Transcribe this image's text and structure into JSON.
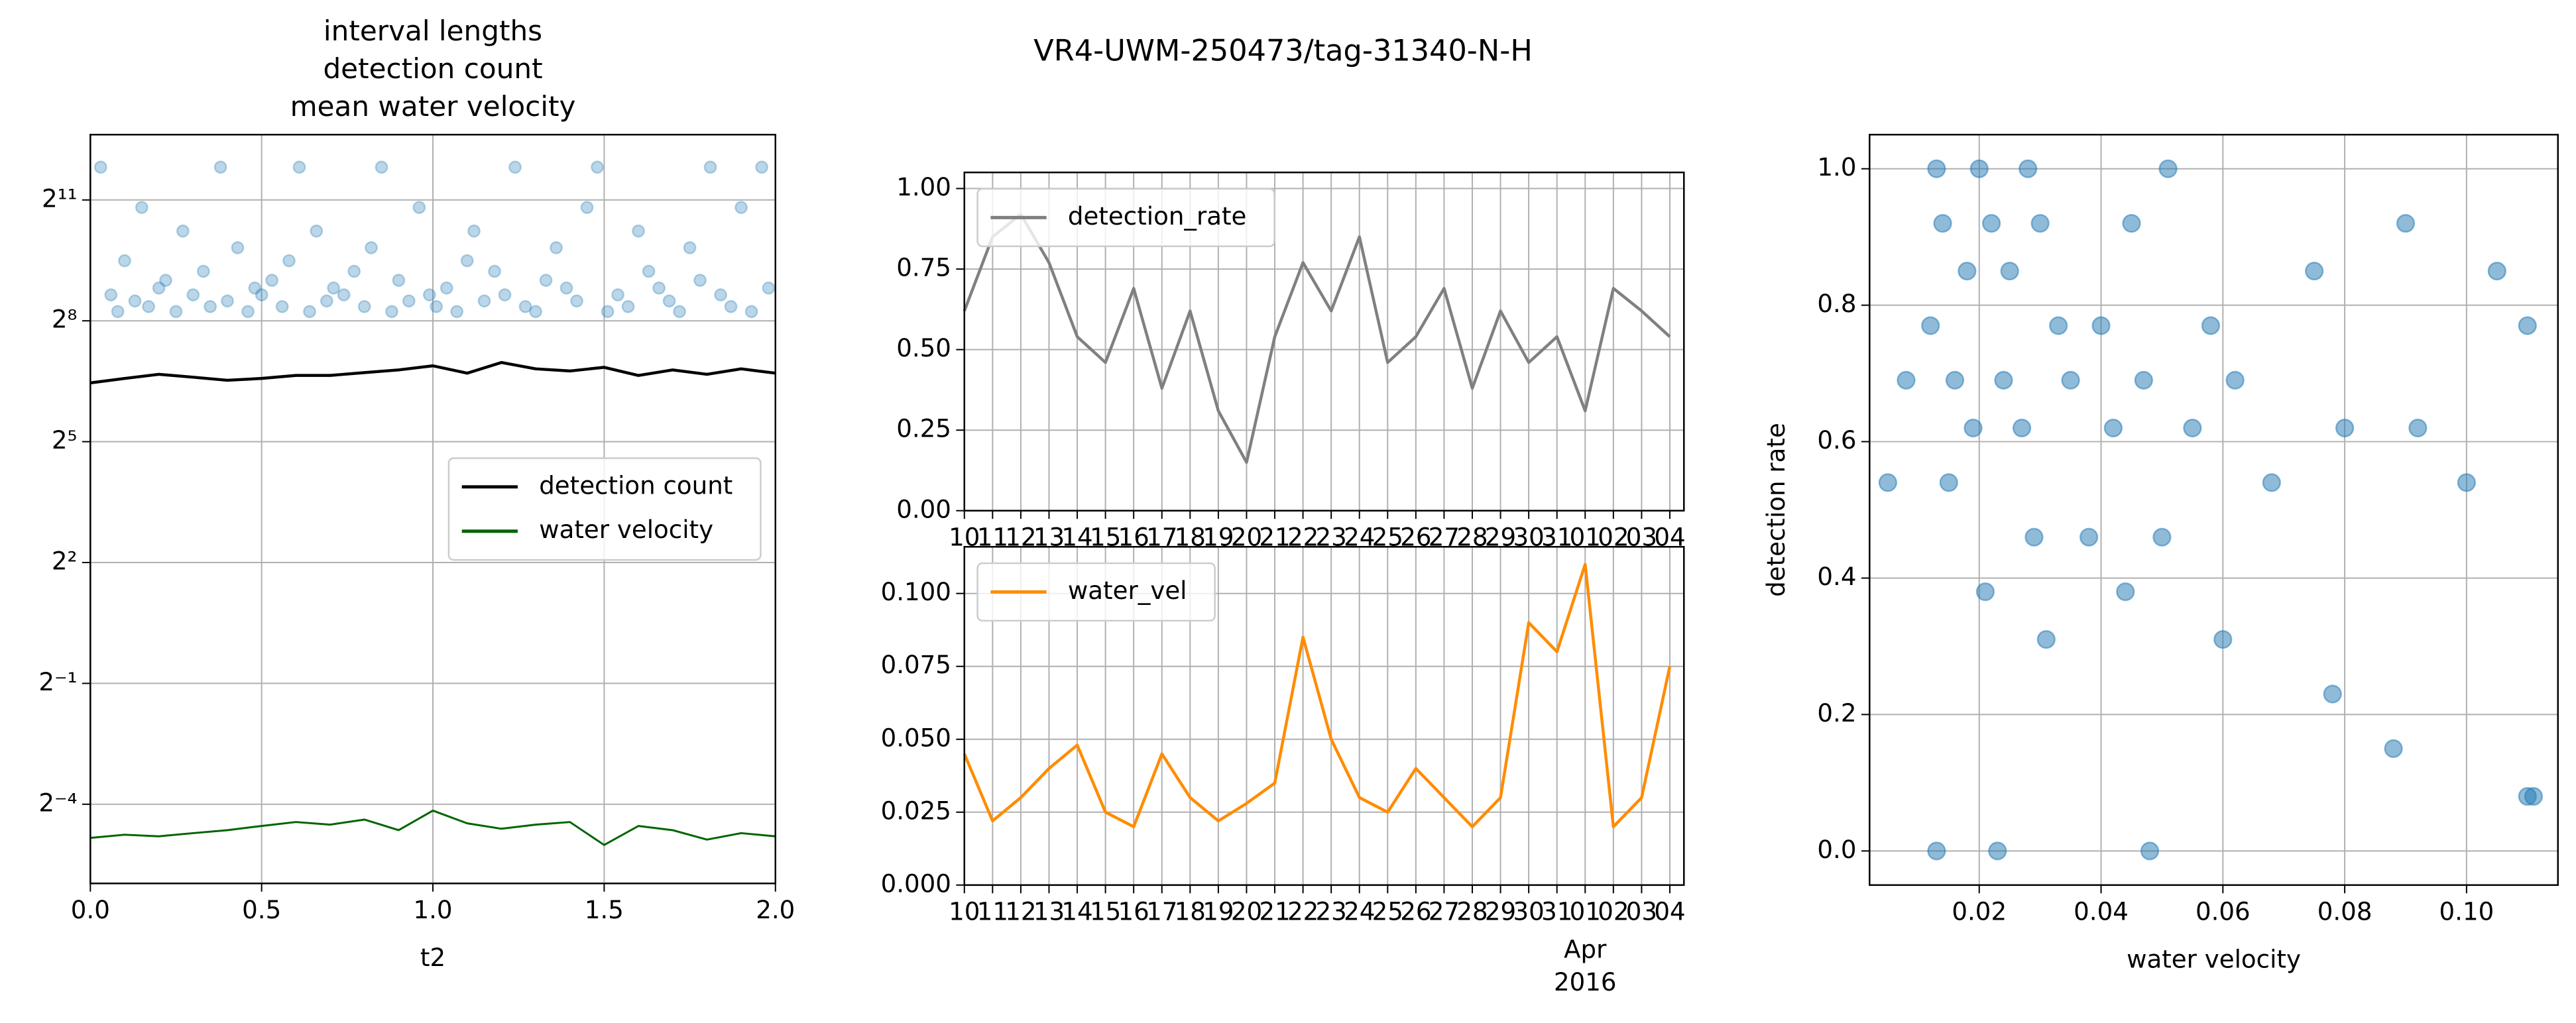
{
  "figure_title": "VR4-UWM-250473/tag-31340-N-H",
  "chart_data": [
    {
      "type": "combo",
      "title": [
        "interval lengths",
        "detection count",
        "mean water velocity"
      ],
      "xlabel": "t2",
      "xlim": [
        0,
        2
      ],
      "xticks": [
        {
          "value": 0,
          "label": "0.0"
        },
        0.5,
        {
          "value": 1,
          "label": "1.0"
        },
        1.5,
        {
          "value": 2,
          "label": "2.0"
        }
      ],
      "yscale": "log",
      "ybase": 2,
      "ylim": [
        0.016,
        6300
      ],
      "yticks": [
        {
          "value": 0.0625,
          "label": "2⁻⁴"
        },
        {
          "value": 0.5,
          "label": "2⁻¹"
        },
        {
          "value": 4,
          "label": "2²"
        },
        {
          "value": 32,
          "label": "2⁵"
        },
        {
          "value": 256,
          "label": "2⁸"
        },
        {
          "value": 2048,
          "label": "2¹¹"
        }
      ],
      "grid": true,
      "legend": "center right",
      "x": [
        0,
        0.1,
        0.2,
        0.3,
        0.4,
        0.5,
        0.6,
        0.7,
        0.8,
        0.9,
        1.0,
        1.1,
        1.2,
        1.3,
        1.4,
        1.5,
        1.6,
        1.7,
        1.8,
        1.9,
        2.0
      ],
      "series": [
        {
          "type": "scatter",
          "color": "#1f77b4",
          "x": [
            0.03,
            0.06,
            0.08,
            0.1,
            0.13,
            0.15,
            0.17,
            0.2,
            0.22,
            0.25,
            0.27,
            0.3,
            0.33,
            0.35,
            0.38,
            0.4,
            0.43,
            0.46,
            0.48,
            0.5,
            0.53,
            0.56,
            0.58,
            0.61,
            0.64,
            0.66,
            0.69,
            0.71,
            0.74,
            0.77,
            0.8,
            0.82,
            0.85,
            0.88,
            0.9,
            0.93,
            0.96,
            0.99,
            1.01,
            1.04,
            1.07,
            1.1,
            1.12,
            1.15,
            1.18,
            1.21,
            1.24,
            1.27,
            1.3,
            1.33,
            1.36,
            1.39,
            1.42,
            1.45,
            1.48,
            1.51,
            1.54,
            1.57,
            1.6,
            1.63,
            1.66,
            1.69,
            1.72,
            1.75,
            1.78,
            1.81,
            1.84,
            1.87,
            1.9,
            1.93,
            1.96,
            1.98
          ],
          "values": [
            3600,
            400,
            300,
            720,
            360,
            1800,
            327,
            450,
            514,
            300,
            1200,
            400,
            600,
            327,
            3600,
            360,
            900,
            300,
            450,
            400,
            514,
            327,
            720,
            3600,
            300,
            1200,
            360,
            450,
            400,
            600,
            327,
            900,
            3600,
            300,
            514,
            360,
            1800,
            400,
            327,
            450,
            300,
            720,
            1200,
            360,
            600,
            400,
            3600,
            327,
            300,
            514,
            900,
            450,
            360,
            1800,
            3600,
            300,
            400,
            327,
            1200,
            600,
            450,
            360,
            300,
            900,
            514,
            3600,
            400,
            327,
            1800,
            300,
            3600,
            450
          ]
        },
        {
          "type": "line",
          "name": "detection count",
          "color": "#000000",
          "values": [
            88,
            95,
            102,
            97,
            92,
            95,
            100,
            100,
            105,
            110,
            118,
            104,
            125,
            112,
            108,
            115,
            100,
            110,
            102,
            112,
            104
          ]
        },
        {
          "type": "line",
          "name": "water velocity",
          "color": "#006400",
          "values": [
            0.035,
            0.037,
            0.036,
            0.038,
            0.04,
            0.043,
            0.046,
            0.044,
            0.048,
            0.04,
            0.056,
            0.045,
            0.041,
            0.044,
            0.046,
            0.031,
            0.043,
            0.04,
            0.034,
            0.038,
            0.036
          ]
        }
      ]
    },
    {
      "type": "line",
      "legend": "upper left",
      "grid": true,
      "xlim": [
        "2016-03-10",
        "2016-04-04T12:00"
      ],
      "xticks": [
        {
          "value": "2016-03-10",
          "label": "10"
        },
        {
          "value": "2016-03-11",
          "label": "11"
        },
        {
          "value": "2016-03-12",
          "label": "12"
        },
        {
          "value": "2016-03-13",
          "label": "13"
        },
        {
          "value": "2016-03-14",
          "label": "14"
        },
        {
          "value": "2016-03-15",
          "label": "15"
        },
        {
          "value": "2016-03-16",
          "label": "16"
        },
        {
          "value": "2016-03-17",
          "label": "17"
        },
        {
          "value": "2016-03-18",
          "label": "18"
        },
        {
          "value": "2016-03-19",
          "label": "19"
        },
        {
          "value": "2016-03-20",
          "label": "20"
        },
        {
          "value": "2016-03-21",
          "label": "21"
        },
        {
          "value": "2016-03-22",
          "label": "22"
        },
        {
          "value": "2016-03-23",
          "label": "23"
        },
        {
          "value": "2016-03-24",
          "label": "24"
        },
        {
          "value": "2016-03-25",
          "label": "25"
        },
        {
          "value": "2016-03-26",
          "label": "26"
        },
        {
          "value": "2016-03-27",
          "label": "27"
        },
        {
          "value": "2016-03-28",
          "label": "28"
        },
        {
          "value": "2016-03-29",
          "label": "29"
        },
        {
          "value": "2016-03-30",
          "label": "30"
        },
        {
          "value": "2016-03-31",
          "label": "31"
        },
        {
          "value": "2016-04-01",
          "label": "01"
        },
        {
          "value": "2016-04-02",
          "label": "02"
        },
        {
          "value": "2016-04-03",
          "label": "03"
        },
        {
          "value": "2016-04-04",
          "label": "04"
        }
      ],
      "ylim": [
        0,
        1.05
      ],
      "yticks": [
        {
          "value": 0,
          "label": "0.00"
        },
        0.25,
        {
          "value": 0.5,
          "label": "0.50"
        },
        0.75,
        {
          "value": 1,
          "label": "1.00"
        }
      ],
      "x": [
        "2016-03-10",
        "2016-03-11",
        "2016-03-12",
        "2016-03-13",
        "2016-03-14",
        "2016-03-15",
        "2016-03-16",
        "2016-03-17",
        "2016-03-18",
        "2016-03-19",
        "2016-03-20",
        "2016-03-21",
        "2016-03-22",
        "2016-03-23",
        "2016-03-24",
        "2016-03-25",
        "2016-03-26",
        "2016-03-27",
        "2016-03-28",
        "2016-03-29",
        "2016-03-30",
        "2016-03-31",
        "2016-04-01",
        "2016-04-02",
        "2016-04-03",
        "2016-04-04"
      ],
      "series": [
        {
          "name": "detection_rate",
          "color": "#808080",
          "values": [
            0.62,
            0.85,
            0.92,
            0.77,
            0.54,
            0.46,
            0.69,
            0.38,
            0.62,
            0.31,
            0.15,
            0.54,
            0.77,
            0.62,
            0.85,
            0.46,
            0.54,
            0.69,
            0.38,
            0.62,
            0.46,
            0.54,
            0.31,
            0.69,
            0.62,
            0.54
          ]
        }
      ]
    },
    {
      "type": "line",
      "legend": "upper left",
      "grid": true,
      "xlim": [
        "2016-03-10",
        "2016-04-04T12:00"
      ],
      "xticks": [
        {
          "value": "2016-03-10",
          "label": "10"
        },
        {
          "value": "2016-03-11",
          "label": "11"
        },
        {
          "value": "2016-03-12",
          "label": "12"
        },
        {
          "value": "2016-03-13",
          "label": "13"
        },
        {
          "value": "2016-03-14",
          "label": "14"
        },
        {
          "value": "2016-03-15",
          "label": "15"
        },
        {
          "value": "2016-03-16",
          "label": "16"
        },
        {
          "value": "2016-03-17",
          "label": "17"
        },
        {
          "value": "2016-03-18",
          "label": "18"
        },
        {
          "value": "2016-03-19",
          "label": "19"
        },
        {
          "value": "2016-03-20",
          "label": "20"
        },
        {
          "value": "2016-03-21",
          "label": "21"
        },
        {
          "value": "2016-03-22",
          "label": "22"
        },
        {
          "value": "2016-03-23",
          "label": "23"
        },
        {
          "value": "2016-03-24",
          "label": "24"
        },
        {
          "value": "2016-03-25",
          "label": "25"
        },
        {
          "value": "2016-03-26",
          "label": "26"
        },
        {
          "value": "2016-03-27",
          "label": "27"
        },
        {
          "value": "2016-03-28",
          "label": "28"
        },
        {
          "value": "2016-03-29",
          "label": "29"
        },
        {
          "value": "2016-03-30",
          "label": "30"
        },
        {
          "value": "2016-03-31",
          "label": "31"
        },
        {
          "value": "2016-04-01",
          "label": "01"
        },
        {
          "value": "2016-04-02",
          "label": "02"
        },
        {
          "value": "2016-04-03",
          "label": "03"
        },
        {
          "value": "2016-04-04",
          "label": "04"
        }
      ],
      "xmajor": {
        "value": "2016-04-01",
        "label": "Apr",
        "year": "2016"
      },
      "ylim": [
        0,
        0.116
      ],
      "yticks": [
        {
          "value": 0,
          "label": "0.000"
        },
        0.025,
        {
          "value": 0.05,
          "label": "0.050"
        },
        0.075,
        {
          "value": 0.1,
          "label": "0.100"
        }
      ],
      "x": [
        "2016-03-10",
        "2016-03-11",
        "2016-03-12",
        "2016-03-13",
        "2016-03-14",
        "2016-03-15",
        "2016-03-16",
        "2016-03-17",
        "2016-03-18",
        "2016-03-19",
        "2016-03-20",
        "2016-03-21",
        "2016-03-22",
        "2016-03-23",
        "2016-03-24",
        "2016-03-25",
        "2016-03-26",
        "2016-03-27",
        "2016-03-28",
        "2016-03-29",
        "2016-03-30",
        "2016-03-31",
        "2016-04-01",
        "2016-04-02",
        "2016-04-03",
        "2016-04-04"
      ],
      "series": [
        {
          "name": "water_vel",
          "color": "#ff8c00",
          "values": [
            0.045,
            0.022,
            0.03,
            0.04,
            0.048,
            0.025,
            0.02,
            0.045,
            0.03,
            0.022,
            0.028,
            0.035,
            0.085,
            0.05,
            0.03,
            0.025,
            0.04,
            0.03,
            0.02,
            0.03,
            0.09,
            0.08,
            0.11,
            0.02,
            0.03,
            0.075
          ]
        }
      ]
    },
    {
      "type": "scatter",
      "xlabel": "water velocity",
      "ylabel": "detection rate",
      "grid": true,
      "xlim": [
        0.002,
        0.115
      ],
      "xticks": [
        0.02,
        0.04,
        0.06,
        0.08,
        {
          "value": 0.1,
          "label": "0.10"
        }
      ],
      "ylim": [
        -0.05,
        1.05
      ],
      "yticks": [
        {
          "value": 0,
          "label": "0.0"
        },
        0.2,
        0.4,
        0.6,
        0.8,
        {
          "value": 1,
          "label": "1.0"
        }
      ],
      "series": [
        {
          "color": "#1f77b4",
          "x": [
            0.013,
            0.02,
            0.028,
            0.051,
            0.014,
            0.022,
            0.03,
            0.045,
            0.09,
            0.105,
            0.018,
            0.025,
            0.012,
            0.033,
            0.04,
            0.058,
            0.075,
            0.11,
            0.016,
            0.024,
            0.035,
            0.047,
            0.062,
            0.08,
            0.008,
            0.019,
            0.027,
            0.042,
            0.055,
            0.068,
            0.092,
            0.1,
            0.015,
            0.029,
            0.038,
            0.05,
            0.005,
            0.021,
            0.031,
            0.044,
            0.06,
            0.078,
            0.088,
            0.11,
            0.013,
            0.023,
            0.048,
            0.111
          ],
          "values": [
            1.0,
            1.0,
            1.0,
            1.0,
            0.92,
            0.92,
            0.92,
            0.92,
            0.92,
            0.85,
            0.85,
            0.85,
            0.77,
            0.77,
            0.77,
            0.77,
            0.85,
            0.77,
            0.69,
            0.69,
            0.69,
            0.69,
            0.69,
            0.62,
            0.69,
            0.62,
            0.62,
            0.62,
            0.62,
            0.54,
            0.62,
            0.54,
            0.54,
            0.46,
            0.46,
            0.46,
            0.54,
            0.38,
            0.31,
            0.38,
            0.31,
            0.23,
            0.15,
            0.08,
            0.0,
            0.0,
            0.0,
            0.08
          ]
        }
      ]
    }
  ]
}
